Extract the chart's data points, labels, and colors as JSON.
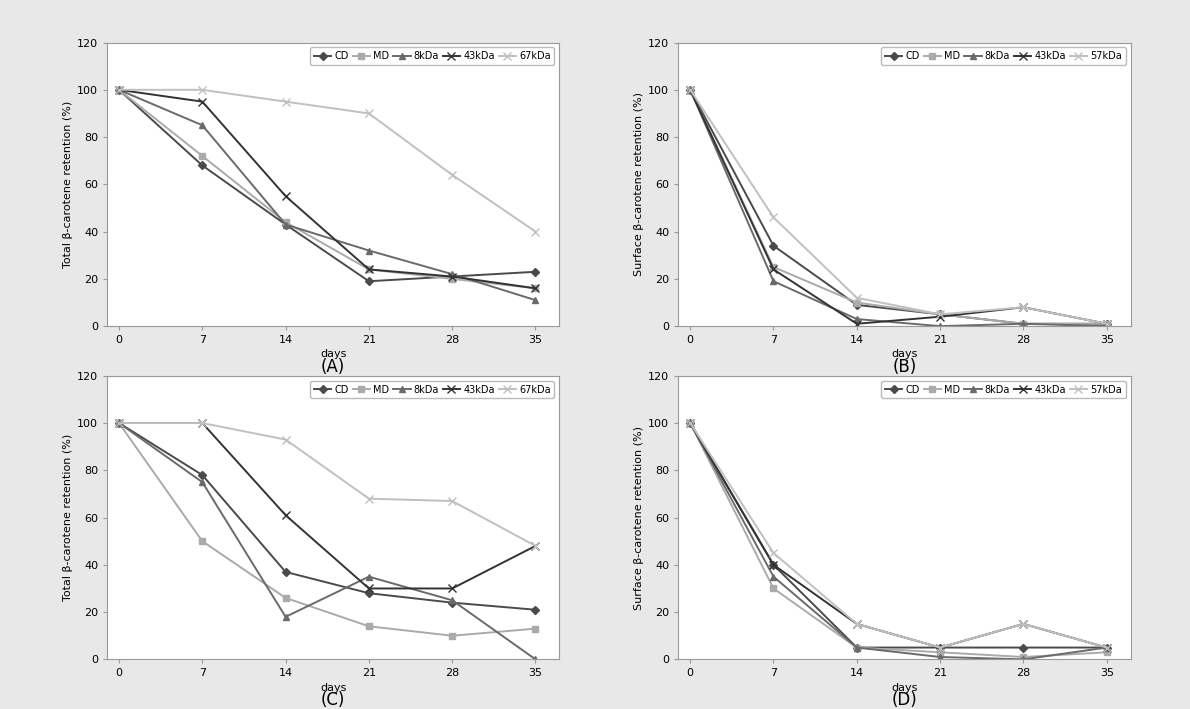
{
  "days": [
    0,
    7,
    14,
    21,
    28,
    35
  ],
  "A": {
    "CD": [
      100,
      68,
      43,
      19,
      21,
      23
    ],
    "MD": [
      100,
      72,
      44,
      24,
      20,
      16
    ],
    "8kDa": [
      100,
      85,
      43,
      32,
      22,
      11
    ],
    "43kDa": [
      100,
      95,
      55,
      24,
      21,
      16
    ],
    "67kDa": [
      100,
      100,
      95,
      90,
      64,
      40
    ]
  },
  "B": {
    "CD": [
      100,
      34,
      9,
      5,
      1,
      1
    ],
    "MD": [
      100,
      25,
      10,
      5,
      1,
      1
    ],
    "8kDa": [
      100,
      19,
      3,
      0,
      1,
      0
    ],
    "43kDa": [
      100,
      24,
      1,
      4,
      8,
      1
    ],
    "57kDa": [
      100,
      46,
      12,
      5,
      8,
      1
    ]
  },
  "C": {
    "CD": [
      100,
      78,
      37,
      28,
      24,
      21
    ],
    "MD": [
      100,
      50,
      26,
      14,
      10,
      13
    ],
    "8kDa": [
      100,
      75,
      18,
      35,
      25,
      0
    ],
    "43kDa": [
      100,
      100,
      61,
      30,
      30,
      48
    ],
    "67kDa": [
      100,
      100,
      93,
      68,
      67,
      48
    ]
  },
  "D": {
    "CD": [
      100,
      40,
      5,
      5,
      5,
      5
    ],
    "MD": [
      100,
      30,
      5,
      3,
      1,
      3
    ],
    "8kDa": [
      100,
      35,
      5,
      1,
      0,
      5
    ],
    "43kDa": [
      100,
      40,
      15,
      5,
      15,
      5
    ],
    "57kDa": [
      100,
      45,
      15,
      5,
      15,
      5
    ]
  },
  "legend_A": [
    "CD",
    "MD",
    "8kDa",
    "43kDa",
    "67kDa"
  ],
  "legend_B": [
    "CD",
    "MD",
    "8kDa",
    "43kDa",
    "57kDa"
  ],
  "legend_C": [
    "CD",
    "MD",
    "8kDa",
    "43kDa",
    "67kDa"
  ],
  "legend_D": [
    "CD",
    "MD",
    "8kDa",
    "43kDa",
    "57kDa"
  ],
  "colors": {
    "CD": "#4a4a4a",
    "MD": "#aaaaaa",
    "8kDa": "#6a6a6a",
    "43kDa": "#333333",
    "67kDa": "#c0c0c0",
    "57kDa": "#c0c0c0"
  },
  "markers": {
    "CD": "D",
    "MD": "s",
    "8kDa": "^",
    "43kDa": "x",
    "67kDa": "x",
    "57kDa": "x"
  },
  "linestyles": {
    "CD": "-",
    "MD": "-",
    "8kDa": "-",
    "43kDa": "-",
    "67kDa": "-",
    "57kDa": "-"
  },
  "ylabel_total": "Total β-carotene retention (%)",
  "ylabel_surface": "Surface β-carotene retention (%)",
  "xlabel": "days",
  "ylim": [
    0,
    120
  ],
  "yticks": [
    0,
    20,
    40,
    60,
    80,
    100,
    120
  ],
  "label_A": "(A)",
  "label_B": "(B)",
  "label_C": "(C)",
  "label_D": "(D)",
  "figure_facecolor": "#ffffff",
  "panel_facecolor": "#ffffff",
  "outer_facecolor": "#e8e8e8",
  "linewidth": 1.4,
  "markersize": 4,
  "fontsize_label": 8,
  "fontsize_tick": 8,
  "fontsize_legend": 7,
  "fontsize_panel_label": 12
}
